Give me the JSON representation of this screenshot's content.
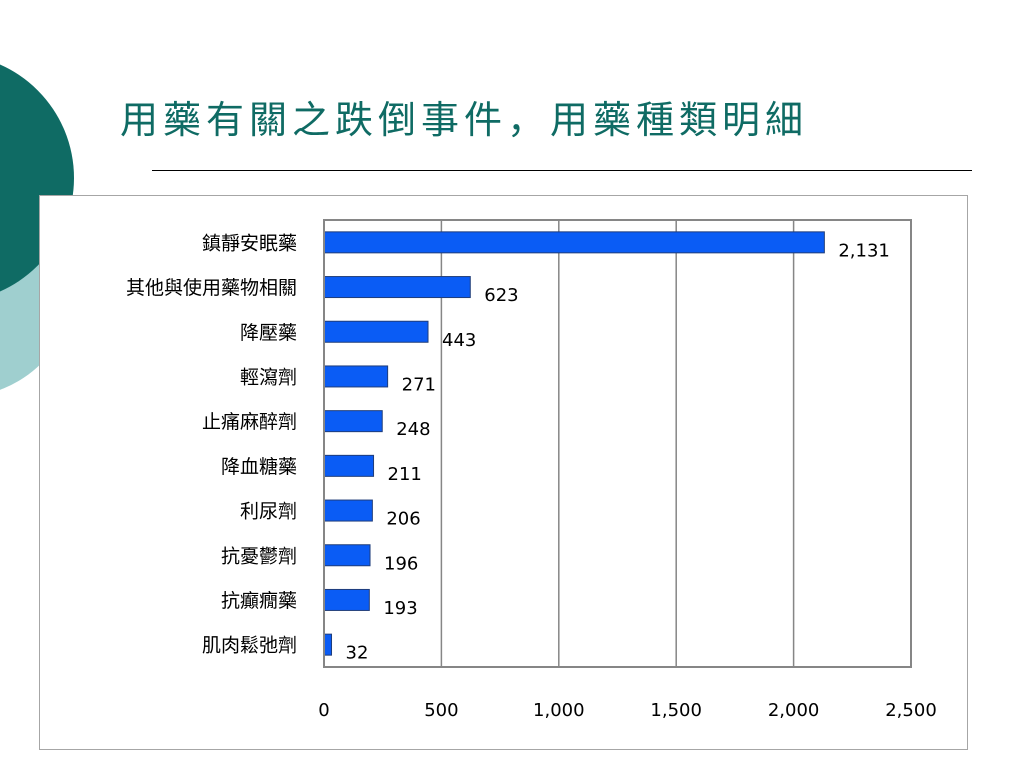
{
  "slide": {
    "title": "用藥有關之跌倒事件，用藥種類明細",
    "colors": {
      "title": "#0f6b64",
      "deco_dark": "#0f6b64",
      "deco_light": "#9fcfcf"
    }
  },
  "chart_data": {
    "type": "bar",
    "orientation": "horizontal",
    "categories": [
      "鎮靜安眠藥",
      "其他與使用藥物相關",
      "降壓藥",
      "輕瀉劑",
      "止痛麻醉劑",
      "降血糖藥",
      "利尿劑",
      "抗憂鬱劑",
      "抗癲癇藥",
      "肌肉鬆弛劑"
    ],
    "values": [
      2131,
      623,
      443,
      271,
      248,
      211,
      206,
      196,
      193,
      32
    ],
    "value_labels": [
      "2,131",
      "623",
      "443",
      "271",
      "248",
      "211",
      "206",
      "196",
      "193",
      "32"
    ],
    "xlim": [
      0,
      2500
    ],
    "xticks": [
      0,
      500,
      1000,
      1500,
      2000,
      2500
    ],
    "xtick_labels": [
      "0",
      "500",
      "1,000",
      "1,500",
      "2,000",
      "2,500"
    ],
    "grid": "vertical",
    "legend": "none",
    "bar_color": "#0a5cf5",
    "bar_edge_color": "#1f3d7a"
  }
}
